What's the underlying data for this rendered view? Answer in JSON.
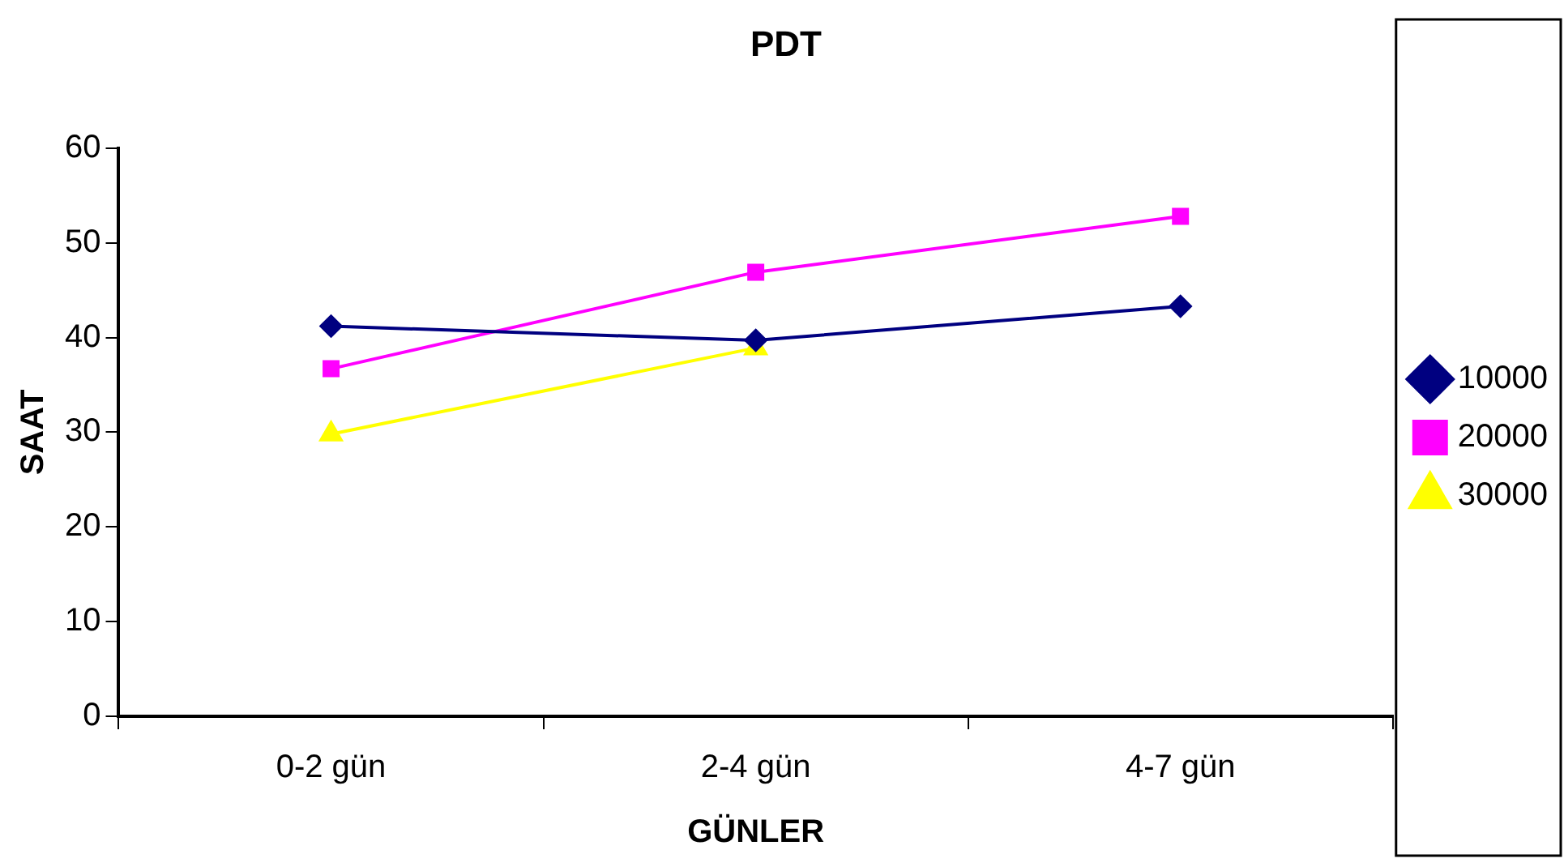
{
  "chart_data": {
    "type": "line",
    "title": "PDT",
    "xlabel": "GÜNLER",
    "ylabel": "SAAT",
    "categories": [
      "0-2 gün",
      "2-4 gün",
      "4-7 gün"
    ],
    "series": [
      {
        "name": "10000",
        "color": "#000080",
        "marker": "diamond",
        "values": [
          41.2,
          39.7,
          43.3
        ]
      },
      {
        "name": "20000",
        "color": "#ff00ff",
        "marker": "square",
        "values": [
          36.7,
          46.9,
          52.8
        ]
      },
      {
        "name": "30000",
        "color": "#ffff00",
        "marker": "triangle",
        "values": [
          29.8,
          38.9,
          null
        ]
      }
    ],
    "ylim": [
      0,
      60
    ],
    "yticks": [
      0,
      10,
      20,
      30,
      40,
      50,
      60
    ],
    "grid": false,
    "legend": "right",
    "line_style": "solid"
  }
}
